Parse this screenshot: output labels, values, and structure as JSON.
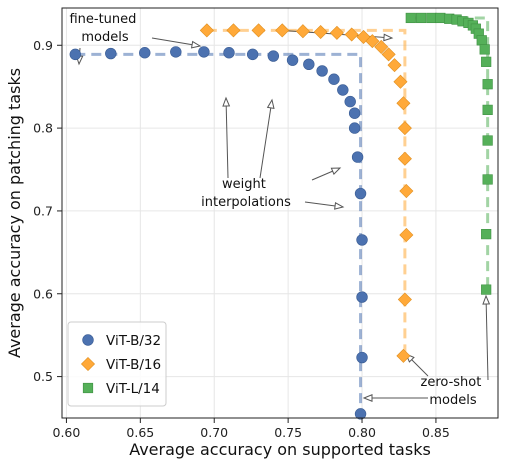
{
  "chart_data": {
    "type": "scatter",
    "xlabel": "Average accuracy on supported tasks",
    "ylabel": "Average accuracy on patching tasks",
    "xlim": [
      0.597,
      0.892
    ],
    "ylim": [
      0.45,
      0.945
    ],
    "xticks": [
      "0.60",
      "0.65",
      "0.70",
      "0.75",
      "0.80",
      "0.85"
    ],
    "yticks": [
      "0.5",
      "0.6",
      "0.7",
      "0.8",
      "0.9"
    ],
    "grid": true,
    "legend_position": "bottom-left",
    "series": [
      {
        "name": "ViT-B/32",
        "marker": "circle",
        "color": "#4c72b0",
        "guide": {
          "x": 0.799,
          "y": 0.889
        },
        "points": [
          [
            0.606,
            0.889
          ],
          [
            0.63,
            0.89
          ],
          [
            0.653,
            0.891
          ],
          [
            0.674,
            0.892
          ],
          [
            0.693,
            0.892
          ],
          [
            0.71,
            0.891
          ],
          [
            0.726,
            0.889
          ],
          [
            0.74,
            0.887
          ],
          [
            0.753,
            0.882
          ],
          [
            0.764,
            0.877
          ],
          [
            0.773,
            0.869
          ],
          [
            0.781,
            0.859
          ],
          [
            0.787,
            0.846
          ],
          [
            0.792,
            0.832
          ],
          [
            0.795,
            0.818
          ],
          [
            0.795,
            0.8
          ],
          [
            0.797,
            0.765
          ],
          [
            0.799,
            0.721
          ],
          [
            0.8,
            0.665
          ],
          [
            0.8,
            0.596
          ],
          [
            0.8,
            0.523
          ],
          [
            0.799,
            0.455
          ]
        ]
      },
      {
        "name": "ViT-B/16",
        "marker": "diamond",
        "color": "#ffa939",
        "guide": {
          "x": 0.829,
          "y": 0.918
        },
        "points": [
          [
            0.695,
            0.918
          ],
          [
            0.713,
            0.918
          ],
          [
            0.73,
            0.918
          ],
          [
            0.746,
            0.918
          ],
          [
            0.76,
            0.917
          ],
          [
            0.772,
            0.916
          ],
          [
            0.783,
            0.915
          ],
          [
            0.793,
            0.913
          ],
          [
            0.801,
            0.91
          ],
          [
            0.807,
            0.905
          ],
          [
            0.813,
            0.898
          ],
          [
            0.818,
            0.889
          ],
          [
            0.822,
            0.876
          ],
          [
            0.826,
            0.856
          ],
          [
            0.828,
            0.83
          ],
          [
            0.829,
            0.8
          ],
          [
            0.829,
            0.763
          ],
          [
            0.83,
            0.724
          ],
          [
            0.83,
            0.671
          ],
          [
            0.829,
            0.593
          ],
          [
            0.828,
            0.525
          ]
        ]
      },
      {
        "name": "ViT-L/14",
        "marker": "square",
        "color": "#55b059",
        "guide": {
          "x": 0.885,
          "y": 0.933
        },
        "points": [
          [
            0.833,
            0.933
          ],
          [
            0.84,
            0.933
          ],
          [
            0.847,
            0.933
          ],
          [
            0.853,
            0.933
          ],
          [
            0.859,
            0.932
          ],
          [
            0.864,
            0.931
          ],
          [
            0.868,
            0.929
          ],
          [
            0.872,
            0.927
          ],
          [
            0.875,
            0.924
          ],
          [
            0.877,
            0.92
          ],
          [
            0.879,
            0.914
          ],
          [
            0.881,
            0.906
          ],
          [
            0.883,
            0.895
          ],
          [
            0.884,
            0.88
          ],
          [
            0.885,
            0.853
          ],
          [
            0.885,
            0.822
          ],
          [
            0.885,
            0.785
          ],
          [
            0.885,
            0.738
          ],
          [
            0.884,
            0.672
          ],
          [
            0.884,
            0.605
          ]
        ]
      }
    ],
    "annotations": [
      {
        "id": "fine-tuned",
        "lines": [
          "fine-tuned",
          "models"
        ]
      },
      {
        "id": "weight",
        "lines": [
          "weight",
          "interpolations"
        ]
      },
      {
        "id": "zero-shot",
        "lines": [
          "zero-shot",
          "models"
        ]
      }
    ]
  }
}
